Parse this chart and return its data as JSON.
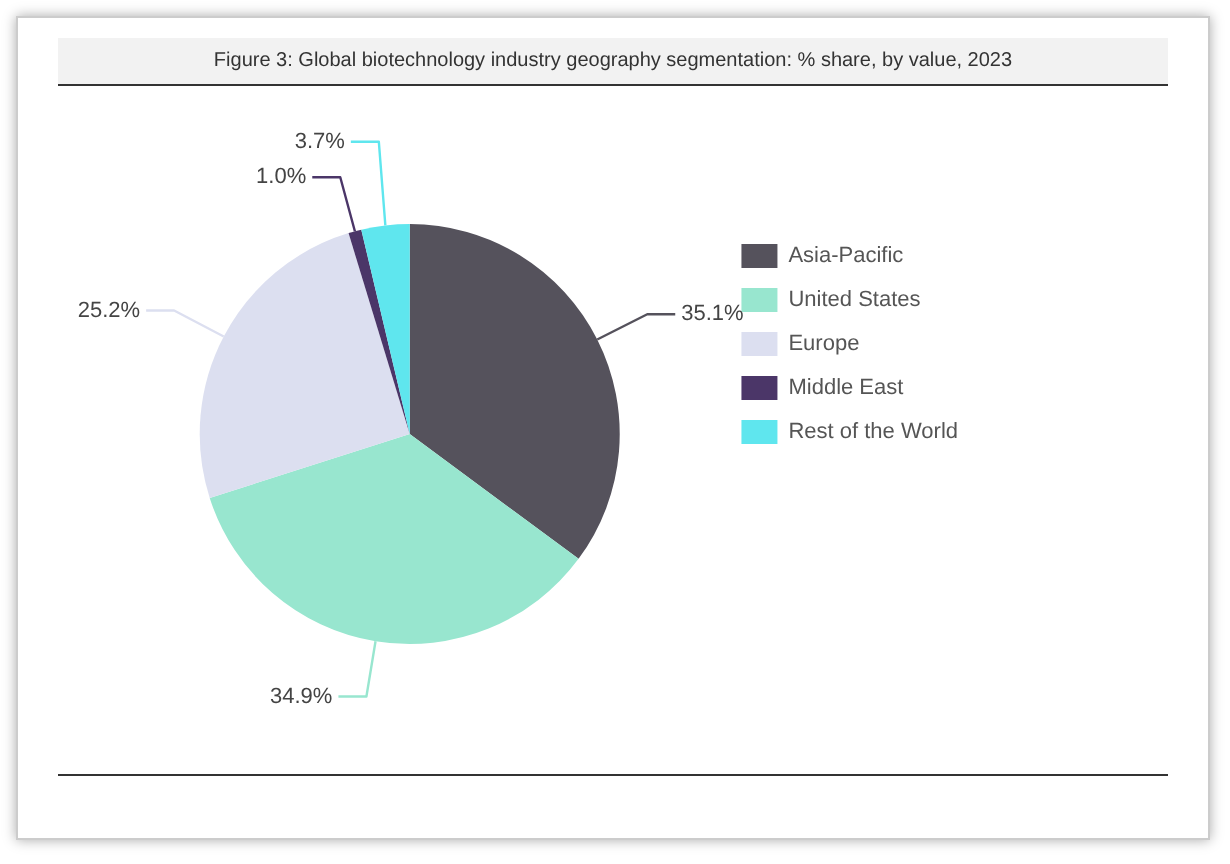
{
  "chart_data": {
    "type": "pie",
    "title": "Figure 3: Global biotechnology industry geography segmentation: % share, by value, 2023",
    "categories": [
      "Asia-Pacific",
      "United States",
      "Europe",
      "Middle East",
      "Rest of the World"
    ],
    "values": [
      35.1,
      34.9,
      25.2,
      1.0,
      3.7
    ],
    "value_labels": [
      "35.1%",
      "34.9%",
      "25.2%",
      "1.0%",
      "3.7%"
    ],
    "colors": [
      "#55525c",
      "#98e6cf",
      "#dcdff0",
      "#4b3668",
      "#5fe6ee"
    ],
    "legend": "top right"
  }
}
